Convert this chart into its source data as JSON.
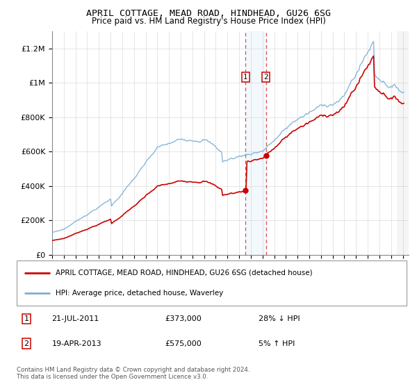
{
  "title": "APRIL COTTAGE, MEAD ROAD, HINDHEAD, GU26 6SG",
  "subtitle": "Price paid vs. HM Land Registry's House Price Index (HPI)",
  "legend_line1": "APRIL COTTAGE, MEAD ROAD, HINDHEAD, GU26 6SG (detached house)",
  "legend_line2": "HPI: Average price, detached house, Waverley",
  "footer": "Contains HM Land Registry data © Crown copyright and database right 2024.\nThis data is licensed under the Open Government Licence v3.0.",
  "sale1_date": "21-JUL-2011",
  "sale1_price": 373000,
  "sale1_year": 2011.55,
  "sale1_label": "28% ↓ HPI",
  "sale2_date": "19-APR-2013",
  "sale2_price": 575000,
  "sale2_year": 2013.29,
  "sale2_label": "5% ↑ HPI",
  "xmin": 1995,
  "xmax": 2025.5,
  "ymin": 0,
  "ymax": 1300000,
  "yticks": [
    0,
    200000,
    400000,
    600000,
    800000,
    1000000,
    1200000
  ],
  "ytick_labels": [
    "£0",
    "£200K",
    "£400K",
    "£600K",
    "£800K",
    "£1M",
    "£1.2M"
  ],
  "red_color": "#cc0000",
  "blue_color": "#7bafd4",
  "hatch_start": 2024.5
}
